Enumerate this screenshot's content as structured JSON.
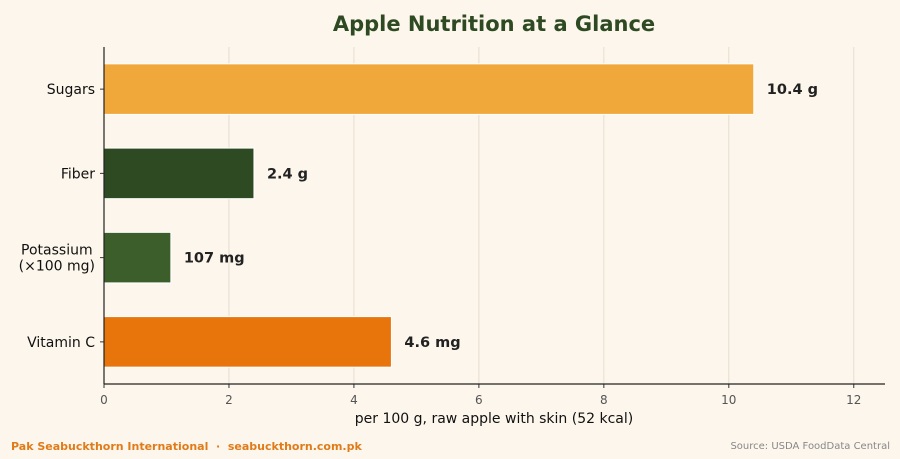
{
  "chart_data": {
    "type": "bar",
    "orientation": "horizontal",
    "title": "Apple Nutrition at a Glance",
    "xlabel": "per 100 g, raw apple with skin (52 kcal)",
    "ylabel": "",
    "xlim": [
      0,
      12.5
    ],
    "xticks": [
      0,
      2,
      4,
      6,
      8,
      10,
      12
    ],
    "grid": "vertical",
    "categories": [
      [
        "Sugars"
      ],
      [
        "Fiber"
      ],
      [
        "Potassium",
        "(×100 mg)"
      ],
      [
        "Vitamin C"
      ]
    ],
    "values": [
      10.4,
      2.4,
      1.07,
      4.6
    ],
    "data_labels": [
      "10.4 g",
      "2.4 g",
      "107 mg",
      "4.6 mg"
    ],
    "colors": [
      "#f0a83a",
      "#2d4a22",
      "#3b5e2b",
      "#e8740c"
    ]
  },
  "footer": {
    "brand": "Pak Seabuckthorn International  ·  seabuckthorn.com.pk",
    "source": "Source: USDA FoodData Central"
  }
}
